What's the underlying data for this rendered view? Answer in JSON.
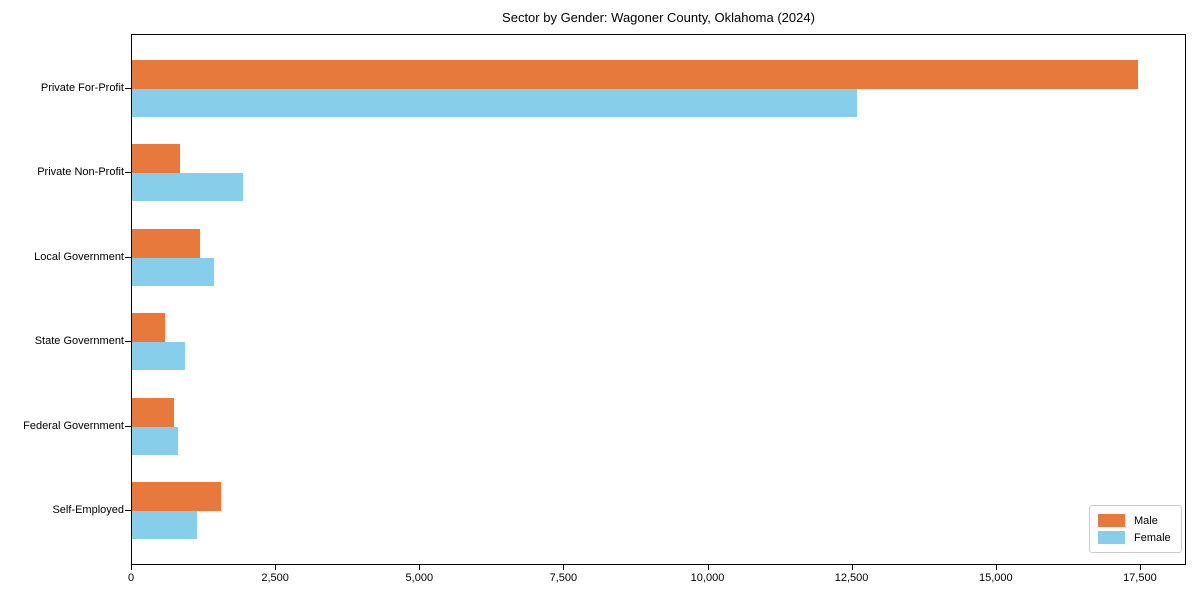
{
  "colors": {
    "male": "#e8793d",
    "female": "#87ceeb",
    "spine": "#000000",
    "legend_border": "#cccccc",
    "background": "#ffffff",
    "text": "#000000"
  },
  "chart_data": {
    "type": "bar",
    "orientation": "horizontal",
    "title": "Sector by Gender: Wagoner County, Oklahoma (2024)",
    "xlabel": "",
    "ylabel": "",
    "categories": [
      "Private For-Profit",
      "Private Non-Profit",
      "Local Government",
      "State Government",
      "Federal Government",
      "Self-Employed"
    ],
    "series": [
      {
        "name": "Male",
        "color_key": "male",
        "values": [
          17450,
          830,
          1180,
          570,
          730,
          1550
        ]
      },
      {
        "name": "Female",
        "color_key": "female",
        "values": [
          12570,
          1930,
          1420,
          920,
          800,
          1130
        ]
      }
    ],
    "xlim": [
      0,
      18300
    ],
    "x_ticks": [
      0,
      2500,
      5000,
      7500,
      10000,
      12500,
      15000,
      17500
    ],
    "x_tick_labels": [
      "0",
      "2,500",
      "5,000",
      "7,500",
      "10,000",
      "12,500",
      "15,000",
      "17,500"
    ],
    "grid": false,
    "legend_position": "lower right"
  }
}
